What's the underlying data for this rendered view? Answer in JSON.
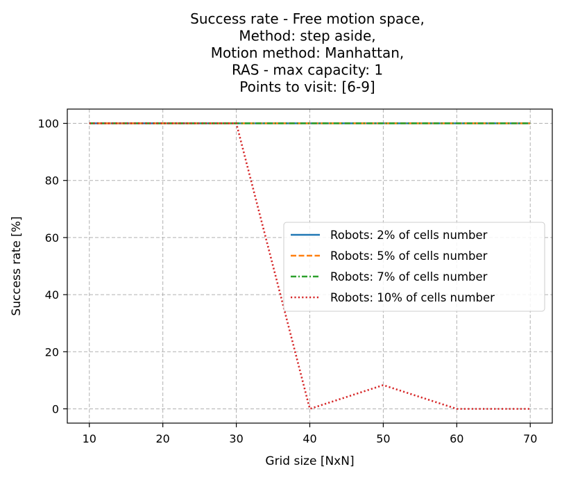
{
  "chart_data": {
    "type": "line",
    "title_lines": [
      "Success rate - Free motion space,",
      "Method: step aside,",
      "Motion method: Manhattan,",
      "RAS - max capacity: 1",
      "Points to visit: [6-9]"
    ],
    "xlabel": "Grid size [NxN]",
    "ylabel": "Success rate [%]",
    "x": [
      10,
      20,
      30,
      40,
      50,
      60,
      70
    ],
    "xticks": [
      "10",
      "20",
      "30",
      "40",
      "50",
      "60",
      "70"
    ],
    "yticks": [
      "0",
      "20",
      "40",
      "60",
      "80",
      "100"
    ],
    "xlim": [
      7,
      73
    ],
    "ylim": [
      -5,
      105
    ],
    "grid": true,
    "legend_position": "center-right",
    "series": [
      {
        "name": "Robots: 2% of cells number",
        "values": [
          100,
          100,
          100,
          100,
          100,
          100,
          100
        ],
        "color": "#1f77b4",
        "dash": "solid"
      },
      {
        "name": "Robots: 5% of cells number",
        "values": [
          100,
          100,
          100,
          100,
          100,
          100,
          100
        ],
        "color": "#ff7f0e",
        "dash": "dashed"
      },
      {
        "name": "Robots: 7% of cells number",
        "values": [
          100,
          100,
          100,
          100,
          100,
          100,
          100
        ],
        "color": "#2ca02c",
        "dash": "dashdot"
      },
      {
        "name": "Robots: 10% of cells number",
        "values": [
          100,
          100,
          100,
          0,
          8.3,
          0,
          0
        ],
        "color": "#d62728",
        "dash": "dotted"
      }
    ]
  }
}
